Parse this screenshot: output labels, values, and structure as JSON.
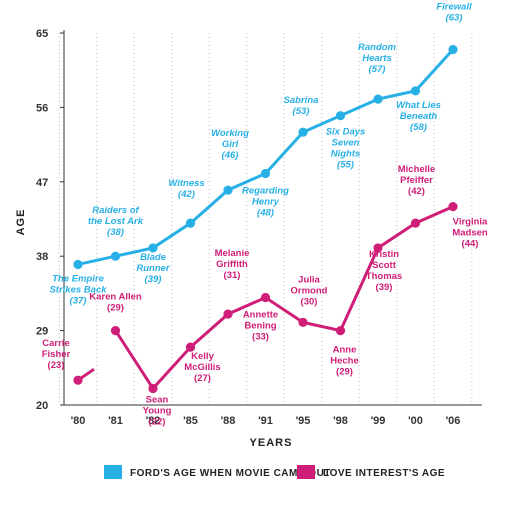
{
  "chart_data": {
    "type": "line",
    "categories": [
      "'80",
      "'81",
      "'82",
      "'85",
      "'88",
      "'91",
      "'95",
      "'98",
      "'99",
      "'00",
      "'06"
    ],
    "ylabel": "AGE",
    "xlabel": "YEARS",
    "yticks": [
      20,
      29,
      38,
      47,
      56,
      65
    ],
    "ylim": [
      20,
      65
    ],
    "grid": "vertical dotted",
    "legend_position": "bottom",
    "series": [
      {
        "name": "FORD'S AGE WHEN MOVIE CAME OUT",
        "color": "#27b0e6",
        "values": [
          37,
          38,
          39,
          42,
          46,
          48,
          53,
          55,
          57,
          58,
          63
        ],
        "labels": [
          {
            "lines": [
              "The Empire",
              "Strikes Back",
              "(37)"
            ]
          },
          {
            "lines": [
              "Raiders of",
              "the Lost Ark",
              "(38)"
            ]
          },
          {
            "lines": [
              "Blade",
              "Runner",
              "(39)"
            ]
          },
          {
            "lines": [
              "Witness",
              "(42)"
            ]
          },
          {
            "lines": [
              "Working",
              "Girl",
              "(46)"
            ]
          },
          {
            "lines": [
              "Regarding",
              "Henry",
              "(48)"
            ]
          },
          {
            "lines": [
              "Sabrina",
              "(53)"
            ]
          },
          {
            "lines": [
              "Six Days",
              "Seven",
              "Nights",
              "(55)"
            ]
          },
          {
            "lines": [
              "Random",
              "Hearts",
              "(57)"
            ]
          },
          {
            "lines": [
              "What Lies",
              "Beneath",
              "(58)"
            ]
          },
          {
            "lines": [
              "Firewall",
              "(63)"
            ]
          }
        ]
      },
      {
        "name": "LOVE INTEREST'S AGE",
        "color": "#cf1d78",
        "values": [
          23,
          29,
          22,
          27,
          31,
          33,
          30,
          29,
          39,
          42,
          44
        ],
        "labels": [
          {
            "lines": [
              "Carrie",
              "Fisher",
              "(23)"
            ]
          },
          {
            "lines": [
              "Karen Allen",
              "(29)"
            ]
          },
          {
            "lines": [
              "Sean",
              "Young",
              "(22)"
            ]
          },
          {
            "lines": [
              "Kelly",
              "McGillis",
              "(27)"
            ]
          },
          {
            "lines": [
              "Melanie",
              "Griffith",
              "(31)"
            ]
          },
          {
            "lines": [
              "Annette",
              "Bening",
              "(33)"
            ]
          },
          {
            "lines": [
              "Julia",
              "Ormond",
              "(30)"
            ]
          },
          {
            "lines": [
              "Anne",
              "Heche",
              "(29)"
            ]
          },
          {
            "lines": [
              "Kristin",
              "Scott",
              "Thomas",
              "(39)"
            ]
          },
          {
            "lines": [
              "Michelle",
              "Pfeiffer",
              "(42)"
            ]
          },
          {
            "lines": [
              "Virginia",
              "Madsen",
              "(44)"
            ]
          }
        ]
      }
    ]
  }
}
